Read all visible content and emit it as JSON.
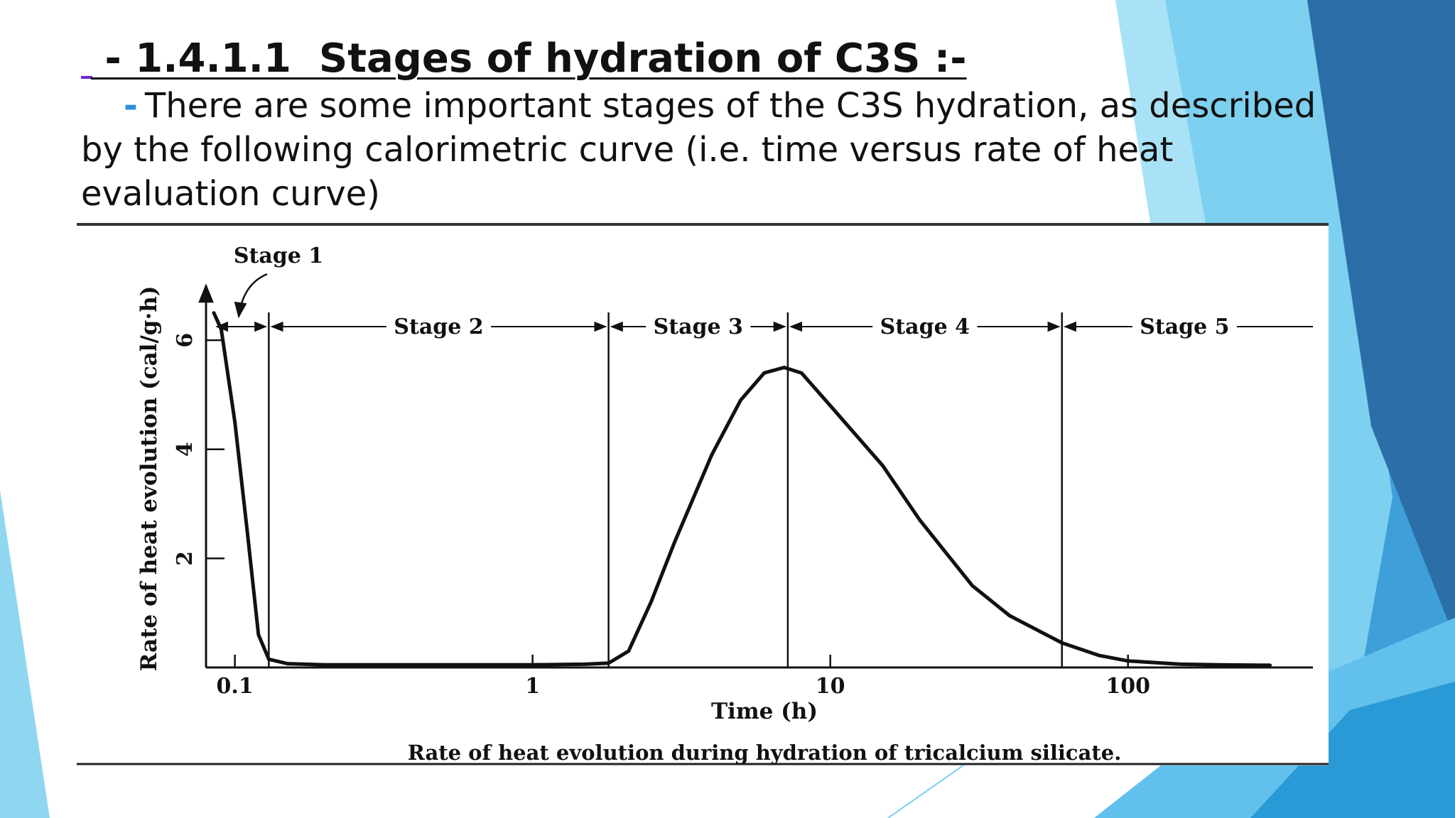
{
  "slide": {
    "title": " - 1.4.1.1  Stages of hydration of C3S :-",
    "bullet": "-",
    "intro": "There are some important stages of the C3S hydration, as described by the following calorimetric curve (i.e. time versus rate of heat evaluation curve)",
    "colors": {
      "bullet": "#2f8fd8",
      "decor_light": "#7dd0ef",
      "decor_mid": "#3f9fd9",
      "decor_dark": "#2c6fa8"
    }
  },
  "chart_data": {
    "type": "line",
    "title": "Rate of heat evolution during hydration of tricalcium silicate.",
    "xlabel": "Time (h)",
    "ylabel": "Rate of heat evolution (cal/g·h)",
    "xscale": "log",
    "xlim": [
      0.08,
      400
    ],
    "ylim": [
      0,
      6.9
    ],
    "xticks": [
      0.1,
      1,
      10,
      100
    ],
    "xtick_labels": [
      "0.1",
      "1",
      "10",
      "100"
    ],
    "yticks": [
      2,
      4,
      6
    ],
    "ytick_labels": [
      "2",
      "4",
      "6"
    ],
    "stage_boundaries": [
      0.085,
      0.13,
      1.8,
      7.2,
      60
    ],
    "stages": [
      {
        "label": "Stage 1",
        "from": 0.085,
        "to": 0.13
      },
      {
        "label": "Stage 2",
        "from": 0.13,
        "to": 1.8
      },
      {
        "label": "Stage 3",
        "from": 1.8,
        "to": 7.2
      },
      {
        "label": "Stage 4",
        "from": 7.2,
        "to": 60
      },
      {
        "label": "Stage 5",
        "from": 60,
        "to": 400
      }
    ],
    "series": [
      {
        "x": [
          0.085,
          0.09,
          0.1,
          0.11,
          0.12,
          0.13,
          0.15,
          0.2,
          0.5,
          1.0,
          1.5,
          1.8,
          2.1,
          2.5,
          3,
          4,
          5,
          6,
          7,
          8,
          10,
          15,
          20,
          30,
          40,
          60,
          80,
          100,
          150,
          200,
          300
        ],
        "y": [
          6.5,
          6.2,
          4.5,
          2.5,
          0.6,
          0.15,
          0.07,
          0.05,
          0.05,
          0.05,
          0.06,
          0.08,
          0.3,
          1.2,
          2.3,
          3.9,
          4.9,
          5.4,
          5.5,
          5.4,
          4.8,
          3.7,
          2.7,
          1.5,
          0.95,
          0.45,
          0.22,
          0.12,
          0.06,
          0.05,
          0.04
        ]
      }
    ],
    "grid": false,
    "legend": "none"
  }
}
